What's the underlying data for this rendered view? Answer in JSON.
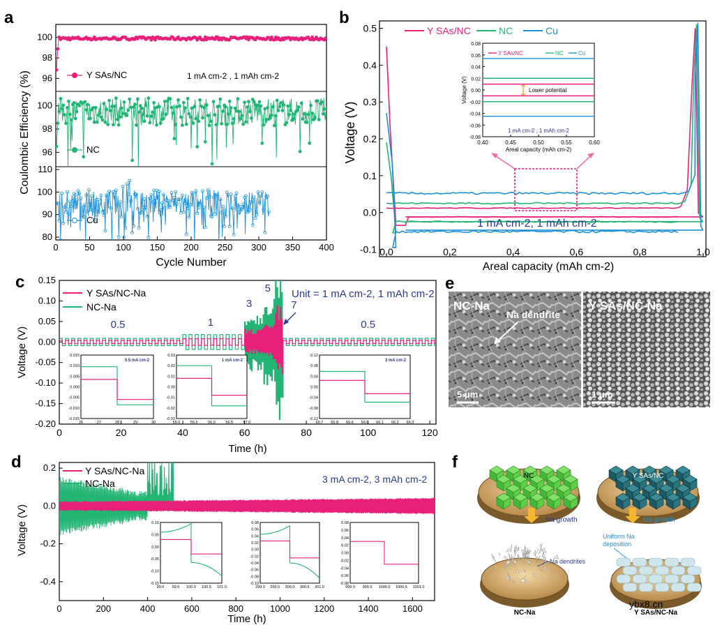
{
  "colors": {
    "pink": "#e8207a",
    "green": "#22b573",
    "blue": "#1e90d6",
    "inset_blue": "#2b3990",
    "arrow_pink": "#f06aa8",
    "orange": "#f7931e",
    "growth_arrow": "#f5b731"
  },
  "panel_labels": {
    "a": "a",
    "b": "b",
    "c": "c",
    "d": "d",
    "e": "e",
    "f": "f"
  },
  "watermark": "ybx8.cn",
  "panel_a": {
    "type": "scatter-line",
    "ylabel": "Coulombic Efficiency (%)",
    "xlabel": "Cycle Number",
    "xlim": [
      0,
      400
    ],
    "xticks": [
      "0",
      "50",
      "100",
      "150",
      "200",
      "250",
      "300",
      "350",
      "400"
    ],
    "annotation": "1 mA cm-2 , 1 mAh cm-2",
    "sub_panels": [
      {
        "name": "Y SAs/NC",
        "ylim": [
          95,
          101
        ],
        "yticks": [
          "96",
          "98",
          "100"
        ],
        "cycles": 400,
        "level": 99.9,
        "spread": 0.15,
        "start": 95.8
      },
      {
        "name": "NC",
        "ylim": [
          95,
          101
        ],
        "yticks": [
          "96",
          "98",
          "100"
        ],
        "cycles": 400,
        "level": 99.5,
        "spread": 1.2,
        "start": 95.5
      },
      {
        "name": "Cu",
        "ylim": [
          80,
          110
        ],
        "yticks": [
          "80",
          "90",
          "100",
          "110"
        ],
        "cycles": 315,
        "level": 95,
        "spread": 6,
        "start": 95
      }
    ]
  },
  "panel_b": {
    "type": "line",
    "xlabel": "Areal capacity (mAh cm-2)",
    "ylabel": "Voltage (V)",
    "xlim": [
      0,
      1.0
    ],
    "ylim": [
      -0.12,
      0.52
    ],
    "xticks": [
      "0.0",
      "0.2",
      "0.4",
      "0.6",
      "0.8",
      "1.0"
    ],
    "yticks": [
      "-0.1",
      "0.0",
      "0.1",
      "0.2",
      "0.3",
      "0.4",
      "0.5"
    ],
    "legend": [
      "Y SAs/NC",
      "NC",
      "Cu"
    ],
    "annotation": "1 mA cm-2, 1 mAh cm-2",
    "series": [
      {
        "name": "Y SAs/NC",
        "upper": 0.012,
        "lower": -0.012,
        "peak": 0.45,
        "nucleation": -0.035,
        "end": 0.5
      },
      {
        "name": "NC",
        "upper": 0.025,
        "lower": -0.025,
        "peak": 0.19,
        "nucleation": -0.055,
        "end": 0.51
      },
      {
        "name": "Cu",
        "upper": 0.052,
        "lower": -0.048,
        "peak": 0.27,
        "nucleation": -0.095,
        "end": 0.515
      }
    ],
    "inset": {
      "xlim": [
        0.4,
        0.6
      ],
      "ylim": [
        -0.08,
        0.08
      ],
      "xticks": [
        "0.40",
        "0.45",
        "0.50",
        "0.55",
        "0.60"
      ],
      "yticks": [
        "0.08",
        "0.06",
        "0.04",
        "0.02",
        "0.00",
        "-0.02",
        "-0.04",
        "-0.06",
        "-0.08"
      ],
      "xlabel": "Areal capacity (mAh cm-2)",
      "ylabel": "Voltage (V)",
      "legend": [
        "Y SAs/NC",
        "NC",
        "Cu"
      ],
      "note": "Lower potential",
      "annotation": "1 mA cm-2 , 1 mAh cm-2",
      "levels": {
        "Y SAs/NC": [
          0.01,
          -0.01
        ],
        "NC": [
          0.02,
          -0.02
        ],
        "Cu": [
          0.054,
          -0.045
        ]
      }
    }
  },
  "panel_c": {
    "type": "line",
    "xlabel": "Time (h)",
    "ylabel": "Voltage (V)",
    "xlim": [
      0,
      122
    ],
    "ylim": [
      -0.2,
      0.15
    ],
    "xticks": [
      "0",
      "20",
      "40",
      "60",
      "80",
      "100",
      "120"
    ],
    "yticks": [
      "0.15",
      "0.10",
      "0.05",
      "0.00",
      "-0.05",
      "-0.10",
      "-0.15",
      "-0.20"
    ],
    "legend": [
      "Y SAs/NC-Na",
      "NC-Na"
    ],
    "unit_note": "Unit = 1 mA cm-2, 1 mAh cm-2",
    "rate_labels": [
      {
        "text": "0.5",
        "t": 19
      },
      {
        "text": "1",
        "t": 49
      },
      {
        "text": "3",
        "t": 61.5
      },
      {
        "text": "5",
        "t": 67.5
      },
      {
        "text": "7",
        "t": 76
      },
      {
        "text": "0.5",
        "t": 100
      }
    ],
    "segments": [
      {
        "rate": "0.5",
        "t0": 0,
        "t1": 40,
        "pink": 0.004,
        "green": 0.009
      },
      {
        "rate": "1",
        "t0": 40,
        "t1": 60,
        "pink": 0.008,
        "green": 0.018
      },
      {
        "rate": "3",
        "t0": 60,
        "t1": 66,
        "pink": 0.025,
        "green": 0.055
      },
      {
        "rate": "5",
        "t0": 66,
        "t1": 70,
        "pink": 0.032,
        "green": 0.09
      },
      {
        "rate": "7",
        "t0": 70,
        "t1": 72.5,
        "pink": 0.07,
        "green": 0.15
      },
      {
        "rate": "0.5",
        "t0": 72.5,
        "t1": 122,
        "pink": 0.004,
        "green": 0.009
      }
    ],
    "insets": [
      {
        "label": "0.5 mA cm-2",
        "xlim": [
          26,
          30
        ],
        "xticks": [
          "26",
          "27",
          "28",
          "29",
          "30"
        ],
        "ylim": [
          -0.015,
          0.015
        ],
        "yticks": [
          "0.015",
          "0.010",
          "0.005",
          "0.000",
          "-0.005",
          "-0.010",
          "-0.015"
        ],
        "switch": 28,
        "pink": [
          0.0035,
          -0.006
        ],
        "green": [
          0.0095,
          -0.0085
        ]
      },
      {
        "label": "1 mA cm-2",
        "xlim": [
          55.0,
          57.0
        ],
        "xticks": [
          "55.0",
          "55.5",
          "56.0",
          "56.5",
          "57.0"
        ],
        "ylim": [
          -0.03,
          0.03
        ],
        "yticks": [
          "0.03",
          "0.02",
          "0.01",
          "0.00",
          "-0.01",
          "-0.02",
          "-0.03"
        ],
        "switch": 56.0,
        "pink": [
          0.008,
          -0.008
        ],
        "green": [
          0.02,
          -0.018
        ]
      },
      {
        "label": "3 mA cm-2",
        "xlim": [
          65.7,
          66.3
        ],
        "xticks": [
          "65.7",
          "65.8",
          "65.9",
          "66.0",
          "66.1",
          "66.2",
          "66.3"
        ],
        "ylim": [
          -0.12,
          0.12
        ],
        "yticks": [
          "0.12",
          "0.08",
          "0.04",
          "0.00",
          "-0.04",
          "-0.08",
          "-0.12"
        ],
        "switch": 66.0,
        "pink": [
          0.024,
          -0.026
        ],
        "green": [
          0.058,
          -0.058
        ]
      }
    ]
  },
  "panel_d": {
    "type": "line",
    "xlabel": "Time (h)",
    "ylabel": "Voltage (V)",
    "xlim": [
      0,
      1700
    ],
    "ylim": [
      -0.5,
      0.23
    ],
    "xticks": [
      "0",
      "200",
      "400",
      "600",
      "800",
      "1000",
      "1200",
      "1400",
      "1600"
    ],
    "yticks": [
      "0.2",
      "0.0",
      "-0.2",
      "-0.4"
    ],
    "legend": [
      "Y SAs/NC-Na",
      "NC-Na"
    ],
    "annotation": "3 mA cm-2, 3 mAh cm-2",
    "pink_amplitude": [
      0.022,
      0.04
    ],
    "green_amplitude": [
      0.14,
      0.06
    ],
    "green_failure": [
      400,
      520
    ],
    "insets": [
      {
        "xlim": [
          99.0,
          101.0
        ],
        "xticks": [
          "99.0",
          "99.5",
          "100.0",
          "100.5",
          "101.0"
        ],
        "ylim": [
          -0.15,
          0.1
        ],
        "yticks": [
          "0.10",
          "0.05",
          "0.00",
          "-0.05",
          "-0.10",
          "-0.15"
        ],
        "switch": 100.0,
        "pink": [
          0.03,
          -0.03
        ],
        "green_top": [
          0.06,
          0.095
        ],
        "green_bot": [
          -0.065,
          -0.12
        ]
      },
      {
        "xlim": [
          299.0,
          301.0
        ],
        "xticks": [
          "299.0",
          "299.5",
          "300.0",
          "300.5",
          "301.0"
        ],
        "ylim": [
          -0.1,
          0.08
        ],
        "yticks": [
          "0.08",
          "0.06",
          "0.04",
          "0.02",
          "0.00",
          "-0.02",
          "-0.04",
          "-0.06",
          "-0.08",
          "-0.10"
        ],
        "switch": 300.0,
        "pink": [
          0.025,
          -0.025
        ],
        "green_top": [
          0.045,
          0.07
        ],
        "green_bot": [
          -0.04,
          -0.085
        ]
      },
      {
        "xlim": [
          999.0,
          1001.0
        ],
        "xticks": [
          "999.0",
          "999.5",
          "1000.0",
          "1000.5",
          "1001.0"
        ],
        "ylim": [
          -0.08,
          0.08
        ],
        "yticks": [
          "0.08",
          "0.06",
          "0.04",
          "0.02",
          "0.00",
          "-0.02",
          "-0.04",
          "-0.06",
          "-0.08"
        ],
        "switch": 1000.0,
        "pink": [
          0.03,
          -0.03
        ]
      }
    ]
  },
  "panel_e": {
    "left": {
      "label": "NC-Na",
      "note": "Na dendrite",
      "scale": "5 μm"
    },
    "right": {
      "label": "Y SAs/NC-Na",
      "scale": "1 μm"
    }
  },
  "panel_f": {
    "top_left": "NC",
    "top_right": "Y SAs/NC",
    "growth_left": "Na growth",
    "growth_right": "Na growth",
    "dendrite_note": "Na dendrites",
    "uniform_note_1": "Uniform Na",
    "uniform_note_2": "deposition",
    "bottom_left": "NC-Na",
    "bottom_right": "Y SAs/NC-Na"
  }
}
